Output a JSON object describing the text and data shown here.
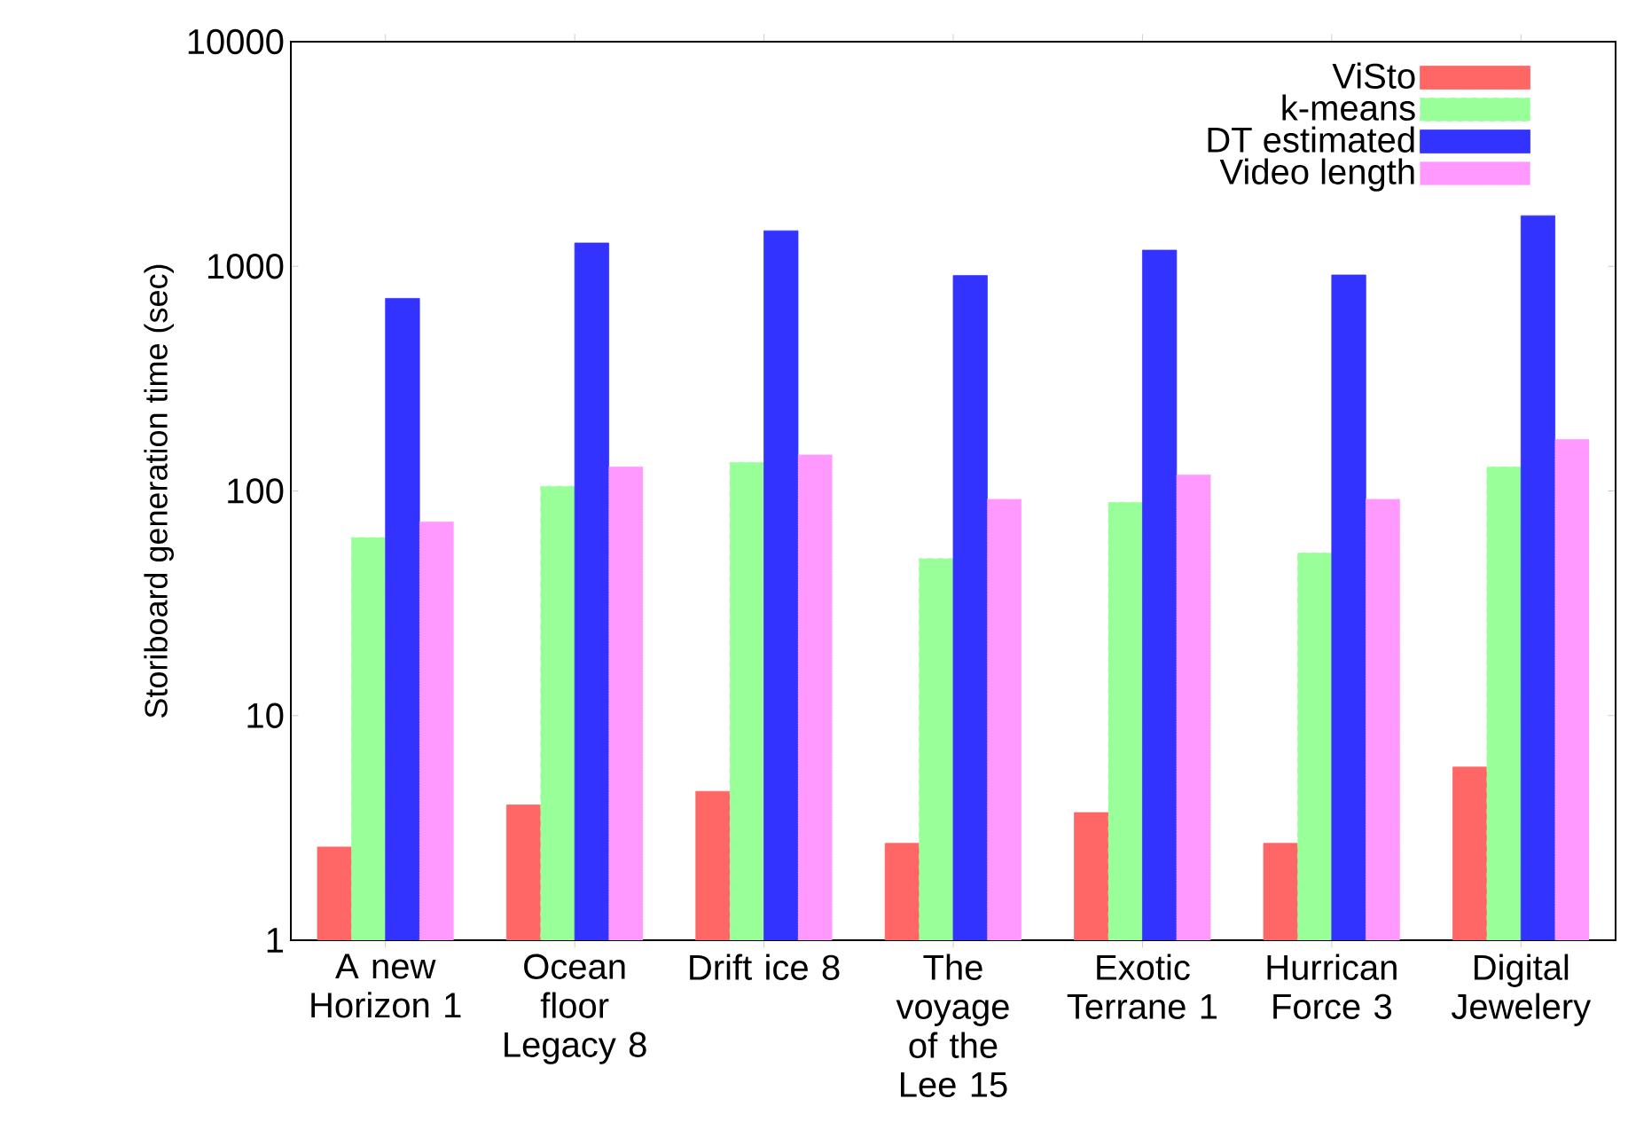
{
  "chart_data": {
    "type": "bar",
    "ylabel": "Storiboard generation time (sec)",
    "categories": [
      "A new Horizon 1",
      "Ocean floor Legacy 8",
      "Drift ice 8",
      "The voyage of the Lee 15",
      "Exotic Terrane 1",
      "Hurrican Force 3",
      "Digital Jewelery"
    ],
    "series": [
      {
        "name": "ViSto",
        "color": "#ff6666",
        "values": [
          2.6,
          4.0,
          4.6,
          2.7,
          3.7,
          2.7,
          5.9
        ]
      },
      {
        "name": "k-means",
        "color": "#99ff99",
        "values": [
          62,
          105,
          134,
          50,
          89,
          53,
          128
        ]
      },
      {
        "name": "DT estimated",
        "color": "#3333ff",
        "values": [
          720,
          1270,
          1440,
          910,
          1180,
          915,
          1680
        ]
      },
      {
        "name": "Video length",
        "color": "#ff99ff",
        "values": [
          73,
          128,
          145,
          92,
          118,
          92,
          170
        ]
      }
    ],
    "log": true,
    "ylim": [
      1,
      10000
    ],
    "yticks": [
      1,
      10,
      100,
      1000,
      10000
    ],
    "legend": "top right",
    "grid": false
  }
}
